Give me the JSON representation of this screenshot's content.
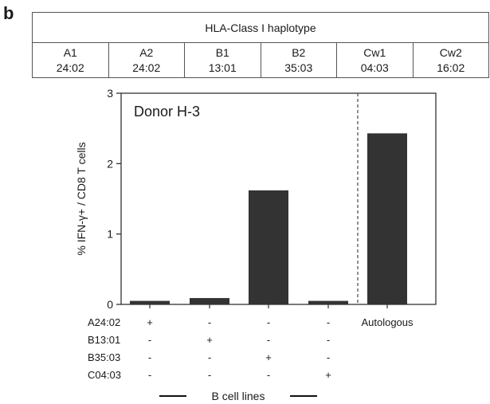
{
  "panel_label": "b",
  "hla_table": {
    "title": "HLA-Class I haplotype",
    "columns": [
      {
        "locus": "A1",
        "allele": "24:02"
      },
      {
        "locus": "A2",
        "allele": "24:02"
      },
      {
        "locus": "B1",
        "allele": "13:01"
      },
      {
        "locus": "B2",
        "allele": "35:03"
      },
      {
        "locus": "Cw1",
        "allele": "04:03"
      },
      {
        "locus": "Cw2",
        "allele": "16:02"
      }
    ]
  },
  "chart_data": {
    "type": "bar",
    "title": "Donor H-3",
    "ylabel": "% IFN-γ+ / CD8 T cells",
    "ylim": [
      0,
      3
    ],
    "yticks": [
      0,
      1,
      2,
      3
    ],
    "categories": [
      "A24:02+",
      "B13:01+",
      "B35:03+",
      "C04:03+",
      "Autologous"
    ],
    "values": [
      0.05,
      0.09,
      1.62,
      0.05,
      2.43
    ],
    "bar_color": "#333333",
    "separator_after_index": 3,
    "grid": false,
    "condition_rows": {
      "labels": [
        "A24:02",
        "B13:01",
        "B35:03",
        "C04:03"
      ],
      "marks": [
        [
          "+",
          "-",
          "-",
          "-"
        ],
        [
          "-",
          "+",
          "-",
          "-"
        ],
        [
          "-",
          "-",
          "+",
          "-"
        ],
        [
          "-",
          "-",
          "-",
          "+"
        ]
      ],
      "autologous_label": "Autologous"
    },
    "group_label": "B cell lines"
  }
}
